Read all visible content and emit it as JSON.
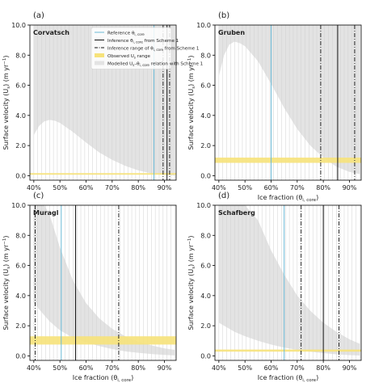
{
  "panels": [
    {
      "id": "a",
      "panel_label": "(a)",
      "site": "Corvatsch",
      "show_xlabel": false,
      "show_ylabel": true,
      "show_legend": true,
      "reference": 86,
      "inference": 91,
      "inference_range": [
        89.5,
        92
      ],
      "observed_range": [
        0.07,
        0.17
      ],
      "envelope": {
        "x": [
          40,
          42,
          44,
          46,
          48,
          50,
          55,
          60,
          65,
          70,
          75,
          80,
          85,
          88,
          90,
          92,
          94
        ],
        "upper": [
          10.0,
          10.0,
          10.0,
          10.0,
          10.0,
          10.0,
          10.0,
          10.0,
          10.0,
          10.0,
          10.0,
          10.0,
          10.0,
          10.0,
          10.0,
          10.0,
          10.0
        ],
        "lower": [
          2.7,
          3.3,
          3.6,
          3.7,
          3.65,
          3.5,
          2.9,
          2.2,
          1.55,
          1.05,
          0.65,
          0.35,
          0.15,
          0.08,
          0.05,
          0.02,
          0.0
        ]
      }
    },
    {
      "id": "b",
      "panel_label": "(b)",
      "site": "Gruben",
      "show_xlabel": true,
      "show_ylabel": true,
      "show_legend": false,
      "reference": 60,
      "inference": 85.5,
      "inference_range": [
        79,
        92
      ],
      "observed_range": [
        0.85,
        1.2
      ],
      "envelope": {
        "x": [
          40,
          42,
          44,
          46,
          48,
          50,
          55,
          60,
          65,
          70,
          75,
          80,
          85,
          90,
          94
        ],
        "upper": [
          10.0,
          10.0,
          10.0,
          10.0,
          10.0,
          10.0,
          10.0,
          10.0,
          10.0,
          10.0,
          10.0,
          10.0,
          10.0,
          10.0,
          10.0
        ],
        "lower": [
          6.6,
          8.0,
          8.7,
          8.9,
          8.8,
          8.6,
          7.6,
          6.1,
          4.5,
          3.1,
          2.0,
          1.2,
          0.6,
          0.25,
          0.1
        ]
      }
    },
    {
      "id": "c",
      "panel_label": "(c)",
      "site": "Muragl",
      "show_xlabel": true,
      "show_ylabel": true,
      "show_legend": false,
      "reference": 50.5,
      "inference": 56,
      "inference_range": [
        40.5,
        72.5
      ],
      "observed_range": [
        0.75,
        1.3
      ],
      "envelope": {
        "x": [
          40,
          42,
          44,
          46,
          48,
          50,
          55,
          60,
          65,
          70,
          75,
          80,
          85,
          90,
          94
        ],
        "upper": [
          10.0,
          10.0,
          10.0,
          9.4,
          8.3,
          7.2,
          5.0,
          3.5,
          2.5,
          1.8,
          1.3,
          0.95,
          0.7,
          0.5,
          0.4
        ],
        "lower": [
          3.5,
          3.1,
          2.7,
          2.3,
          2.0,
          1.7,
          1.2,
          0.9,
          0.65,
          0.45,
          0.3,
          0.2,
          0.12,
          0.06,
          0.03
        ]
      }
    },
    {
      "id": "d",
      "panel_label": "(d)",
      "site": "Schafberg",
      "show_xlabel": true,
      "show_ylabel": true,
      "show_legend": false,
      "reference": 65,
      "inference": 80,
      "inference_range": [
        71.5,
        86
      ],
      "observed_range": [
        0.28,
        0.42
      ],
      "envelope": {
        "x": [
          40,
          42,
          44,
          46,
          48,
          50,
          55,
          60,
          65,
          70,
          75,
          80,
          85,
          90,
          94
        ],
        "upper": [
          10.0,
          10.0,
          10.0,
          10.0,
          10.0,
          10.0,
          9.0,
          7.0,
          5.4,
          4.0,
          3.0,
          2.2,
          1.6,
          1.1,
          0.8
        ],
        "lower": [
          2.2,
          2.0,
          1.8,
          1.6,
          1.45,
          1.3,
          1.0,
          0.75,
          0.55,
          0.4,
          0.28,
          0.18,
          0.1,
          0.05,
          0.02
        ]
      }
    }
  ],
  "axes": {
    "xlabel": "Ice fraction (θ",
    "xlabel_sub": "i, core",
    "xlabel_tail": ")",
    "ylabel": "Surface velocity (U",
    "ylabel_sub": "s",
    "ylabel_tail": ") (m yr",
    "ylabel_sup": "−1",
    "ylabel_end": ")",
    "xlim": [
      38.5,
      94.5
    ],
    "ylim": [
      -0.3,
      10.0
    ],
    "xticks": [
      40,
      50,
      60,
      70,
      80,
      90
    ],
    "xtick_labels": [
      "40%",
      "50%",
      "60%",
      "70%",
      "80%",
      "90%"
    ],
    "yticks": [
      0,
      2,
      4,
      6,
      8,
      10
    ],
    "ytick_labels": [
      "0.0",
      "2.0",
      "4.0",
      "6.0",
      "8.0",
      "10.0"
    ],
    "sample_grid_x": [
      40,
      41.5,
      43,
      44.5,
      46,
      47.5,
      49,
      50.5,
      52,
      53.5,
      55,
      56.5,
      58,
      59.5,
      61,
      62.5,
      64,
      65.5,
      67,
      68.5,
      70,
      71.5,
      73,
      74.5,
      76,
      77.5,
      79,
      80.5,
      82,
      83.5,
      85,
      86.5,
      88,
      89.5,
      91,
      92.5,
      94
    ]
  },
  "legend": {
    "items": [
      {
        "kind": "reference",
        "label": "Reference θ",
        "sub": "i, core"
      },
      {
        "kind": "inference",
        "label": "Inference θ",
        "sub": "i, core",
        "tail": " from Scheme 1"
      },
      {
        "kind": "range",
        "label": "Inference range of θ",
        "sub": "i, core",
        "tail": " from Scheme 1"
      },
      {
        "kind": "observed",
        "label": "Observed U",
        "sub": "s",
        "tail": " range"
      },
      {
        "kind": "modelled",
        "label": "Modelled U",
        "sub": "s",
        "mid": "–θ",
        "sub2": "i, core",
        "tail": " relation with Scheme 1"
      }
    ]
  },
  "colors": {
    "reference": "#6bbad6",
    "inference": "#111111",
    "range": "#111111",
    "observed": "#f6e27a",
    "envelope": "#e3e3e3",
    "grid": "#d0d0d0"
  },
  "chart_data": [
    {
      "type": "area",
      "panel": "(a)",
      "site": "Corvatsch",
      "reference_theta": 86,
      "inference_theta": 91,
      "inference_range": [
        89.5,
        92
      ],
      "observed_Us_range": [
        0.07,
        0.17
      ],
      "xlim": [
        38.5,
        94.5
      ],
      "ylim": [
        -0.3,
        10.0
      ]
    },
    {
      "type": "area",
      "panel": "(b)",
      "site": "Gruben",
      "reference_theta": 60,
      "inference_theta": 85.5,
      "inference_range": [
        79,
        92
      ],
      "observed_Us_range": [
        0.85,
        1.2
      ],
      "xlim": [
        38.5,
        94.5
      ],
      "ylim": [
        -0.3,
        10.0
      ]
    },
    {
      "type": "area",
      "panel": "(c)",
      "site": "Muragl",
      "reference_theta": 50.5,
      "inference_theta": 56,
      "inference_range": [
        40.5,
        72.5
      ],
      "observed_Us_range": [
        0.75,
        1.3
      ],
      "xlim": [
        38.5,
        94.5
      ],
      "ylim": [
        -0.3,
        10.0
      ]
    },
    {
      "type": "area",
      "panel": "(d)",
      "site": "Schafberg",
      "reference_theta": 65,
      "inference_theta": 80,
      "inference_range": [
        71.5,
        86
      ],
      "observed_Us_range": [
        0.28,
        0.42
      ],
      "xlim": [
        38.5,
        94.5
      ],
      "ylim": [
        -0.3,
        10.0
      ]
    }
  ]
}
